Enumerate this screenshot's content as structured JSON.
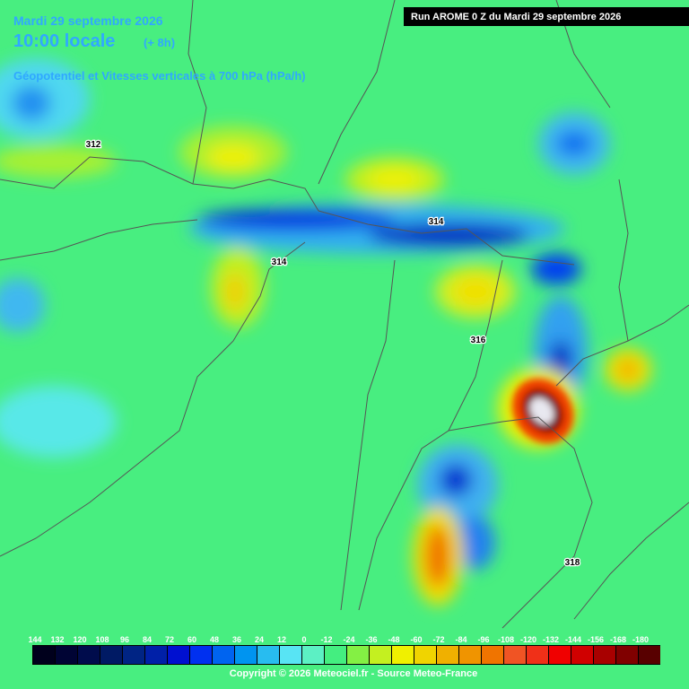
{
  "header": {
    "date": "Mardi 29 septembre 2026",
    "time": "10:00 locale",
    "lead": "(+ 8h)",
    "subtitle": "Géopotentiel et Vitesses verticales à 700 hPa (hPa/h)",
    "run": "Run AROME 0 Z du Mardi 29 septembre 2026"
  },
  "contour_labels": [
    "312",
    "314",
    "314",
    "316",
    "318"
  ],
  "colorbar": {
    "ticks": [
      144,
      132,
      120,
      108,
      96,
      84,
      72,
      60,
      48,
      36,
      24,
      12,
      0,
      -12,
      -24,
      -36,
      -48,
      -60,
      -72,
      -84,
      -96,
      -108,
      -120,
      -132,
      -144,
      -156,
      -168,
      -180
    ],
    "colors": [
      "#00001c",
      "#000434",
      "#000c4c",
      "#001a64",
      "#002484",
      "#0020a8",
      "#0010d0",
      "#0030f0",
      "#0064f0",
      "#0094f0",
      "#28bcf0",
      "#58e4f4",
      "#5cf0c4",
      "#44ee80",
      "#84f044",
      "#c4f020",
      "#f0f000",
      "#f0d400",
      "#f0b000",
      "#f09400",
      "#f07400",
      "#f05424",
      "#f03018",
      "#f00000",
      "#d00000",
      "#a80000",
      "#800000",
      "#580000"
    ]
  },
  "footer": "Copyright © 2026 Meteociel.fr - Source Meteo-France"
}
